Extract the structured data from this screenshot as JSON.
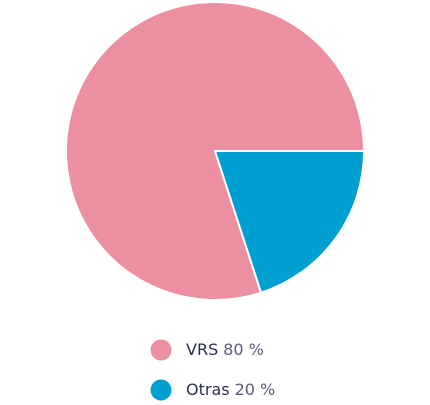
{
  "chart_data": {
    "type": "pie",
    "categories": [
      "VRS",
      "Otras"
    ],
    "values": [
      80,
      20
    ],
    "value_labels": [
      "80 %",
      "20 %"
    ],
    "colors": [
      "#ec8fa0",
      "#009fd1"
    ],
    "legend": "bottom"
  }
}
